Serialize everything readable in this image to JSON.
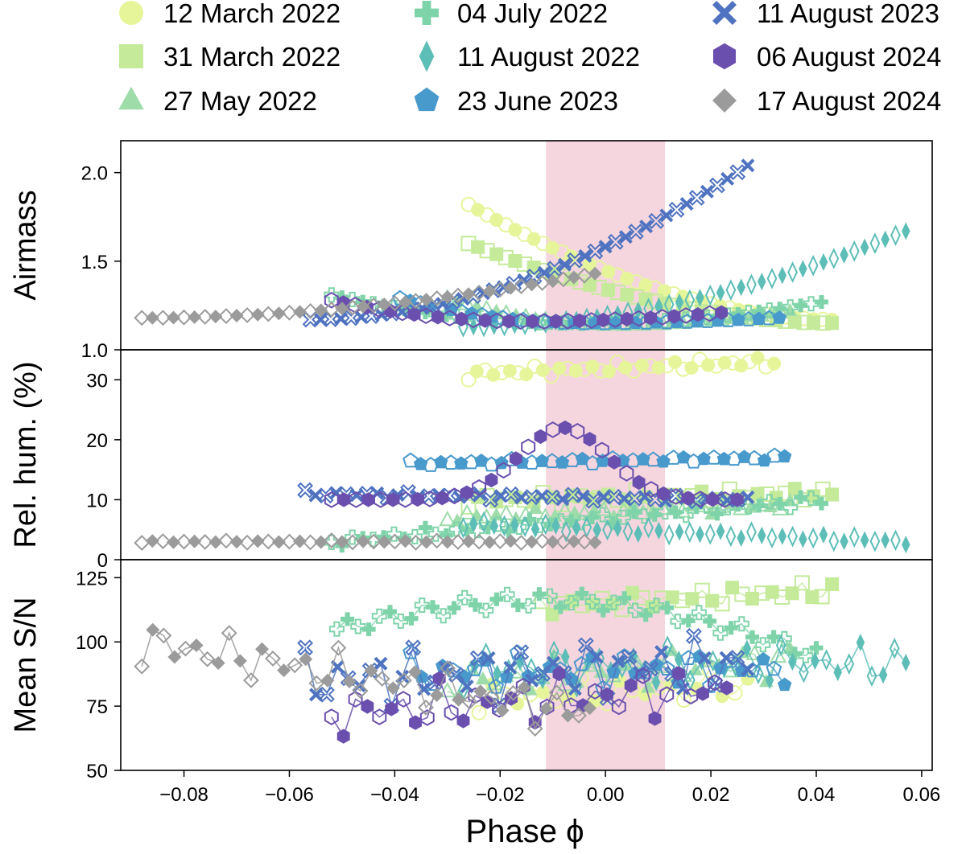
{
  "legend": [
    {
      "label": "12 March 2022",
      "marker": "circle",
      "color": "#e6f59a"
    },
    {
      "label": "31 March 2022",
      "marker": "square",
      "color": "#c4ea9a"
    },
    {
      "label": "27 May 2022",
      "marker": "triangle",
      "color": "#9edcaa"
    },
    {
      "label": "04 July 2022",
      "marker": "plus",
      "color": "#7fd3a9"
    },
    {
      "label": "11 August 2022",
      "marker": "diamond",
      "color": "#5dbdb7"
    },
    {
      "label": "23 June 2023",
      "marker": "pentagon",
      "color": "#4899cc"
    },
    {
      "label": "11 August 2023",
      "marker": "x",
      "color": "#4f73c0"
    },
    {
      "label": "06 August 2024",
      "marker": "hexagon",
      "color": "#6a4fae"
    },
    {
      "label": "17 August 2024",
      "marker": "thindiamond",
      "color": "#9b9b9b"
    }
  ],
  "shaded_band": {
    "x_range": [
      -0.0113,
      0.0113
    ],
    "color": "#f6d6de"
  },
  "chart_data": {
    "type": "scatter",
    "xlabel": "Phase ϕ",
    "xlim": [
      -0.092,
      0.062
    ],
    "xticks": [
      -0.08,
      -0.06,
      -0.04,
      -0.02,
      0.0,
      0.02,
      0.04,
      0.06
    ],
    "xtick_labels": [
      "−0.08",
      "−0.06",
      "−0.04",
      "−0.02",
      "0.00",
      "0.02",
      "0.04",
      "0.06"
    ],
    "panels": [
      {
        "ylabel": "Airmass",
        "ylim": [
          1.0,
          2.18
        ],
        "yticks": [
          1.0,
          1.5,
          2.0
        ],
        "ytick_labels": [
          "1.0",
          "1.5",
          "2.0"
        ],
        "series": [
          {
            "name": "12 March 2022",
            "x_range": [
              -0.026,
              0.043
            ],
            "y_start": 1.82,
            "y_end": 1.17,
            "shape": "decay",
            "n": 40,
            "connect": false
          },
          {
            "name": "31 March 2022",
            "x_range": [
              -0.026,
              0.043
            ],
            "y_start": 1.6,
            "y_end": 1.15,
            "shape": "decay",
            "n": 40,
            "connect": false
          },
          {
            "name": "27 May 2022",
            "x_range": [
              -0.03,
              0.035
            ],
            "y_start": 1.29,
            "y_end": 1.22,
            "y_min": 1.14,
            "shape": "bowl",
            "n": 36,
            "connect": false
          },
          {
            "name": "04 July 2022",
            "x_range": [
              -0.052,
              0.041
            ],
            "y_start": 1.31,
            "y_end": 1.27,
            "y_min": 1.15,
            "shape": "bowl",
            "n": 48,
            "connect": false
          },
          {
            "name": "11 August 2022",
            "x_range": [
              -0.027,
              0.057
            ],
            "y_start": 1.13,
            "y_end": 1.67,
            "shape": "grow",
            "n": 44,
            "connect": false
          },
          {
            "name": "23 June 2023",
            "x_range": [
              -0.039,
              0.033
            ],
            "y_start": 1.29,
            "y_end": 1.18,
            "y_min": 1.15,
            "shape": "bowl",
            "n": 38,
            "connect": false
          },
          {
            "name": "11 August 2023",
            "x_range": [
              -0.056,
              0.027
            ],
            "y_start": 1.17,
            "y_end": 2.04,
            "shape": "grow",
            "n": 44,
            "connect": false
          },
          {
            "name": "06 August 2024",
            "x_range": [
              -0.052,
              0.022
            ],
            "y_start": 1.28,
            "y_end": 1.21,
            "y_min": 1.16,
            "shape": "bowl",
            "n": 34,
            "connect": false
          },
          {
            "name": "17 August 2024",
            "x_range": [
              -0.088,
              -0.002
            ],
            "y_start": 1.18,
            "y_end": 1.43,
            "shape": "grow",
            "n": 44,
            "connect": false
          }
        ]
      },
      {
        "ylabel": "Rel. hum. (%)",
        "ylim": [
          0,
          35
        ],
        "yticks": [
          0,
          10,
          20,
          30
        ],
        "ytick_labels": [
          "0",
          "10",
          "20",
          "30"
        ],
        "series": [
          {
            "name": "12 March 2022",
            "x_range": [
              -0.026,
              0.032
            ],
            "y_start": 31,
            "y_end": 33,
            "shape": "wave",
            "amp": 1.0,
            "n": 38,
            "connect": false
          },
          {
            "name": "31 March 2022",
            "x_range": [
              -0.026,
              0.043
            ],
            "y_start": 10,
            "y_end": 11,
            "shape": "wave",
            "amp": 1.2,
            "n": 40,
            "connect": false
          },
          {
            "name": "27 May 2022",
            "x_range": [
              -0.03,
              0.035
            ],
            "y_start": 7,
            "y_end": 9,
            "shape": "wave",
            "amp": 1.0,
            "n": 36,
            "connect": false
          },
          {
            "name": "04 July 2022",
            "x_range": [
              -0.052,
              0.041
            ],
            "y_start": 3,
            "y_end": 10,
            "shape": "wave",
            "amp": 1.0,
            "n": 48,
            "connect": false
          },
          {
            "name": "11 August 2022",
            "x_range": [
              -0.027,
              0.057
            ],
            "y_start": 6,
            "y_end": 3,
            "shape": "wave",
            "amp": 0.7,
            "n": 44,
            "connect": false
          },
          {
            "name": "23 June 2023",
            "x_range": [
              -0.037,
              0.034
            ],
            "y_start": 16,
            "y_end": 17,
            "shape": "wave",
            "amp": 0.5,
            "n": 38,
            "connect": false
          },
          {
            "name": "11 August 2023",
            "x_range": [
              -0.057,
              0.027
            ],
            "y_start": 11,
            "y_end": 10,
            "shape": "wave",
            "amp": 0.6,
            "n": 44,
            "connect": false
          },
          {
            "name": "06 August 2024",
            "x_range": [
              -0.052,
              0.025
            ],
            "y_start": 10,
            "y_end": 10,
            "shape": "peak",
            "peak_x": -0.008,
            "peak_y": 22,
            "n": 34,
            "connect": false
          },
          {
            "name": "17 August 2024",
            "x_range": [
              -0.088,
              -0.002
            ],
            "y_start": 3,
            "y_end": 3,
            "shape": "wave",
            "amp": 0.2,
            "n": 44,
            "connect": false
          }
        ]
      },
      {
        "ylabel": "Mean S/N",
        "ylim": [
          50,
          132
        ],
        "yticks": [
          50,
          75,
          100,
          125
        ],
        "ytick_labels": [
          "50",
          "75",
          "100",
          "125"
        ],
        "series": [
          {
            "name": "12 March 2022",
            "x_range": [
              -0.024,
              0.027
            ],
            "y_start": 78,
            "y_end": 83,
            "shape": "wave",
            "amp": 7,
            "n": 22,
            "connect": true
          },
          {
            "name": "31 March 2022",
            "x_range": [
              -0.012,
              0.043
            ],
            "y_start": 114,
            "y_end": 120,
            "shape": "wave",
            "amp": 4,
            "n": 30,
            "connect": true
          },
          {
            "name": "27 May 2022",
            "x_range": [
              -0.03,
              0.035
            ],
            "y_start": 84,
            "y_end": 93,
            "shape": "wave",
            "amp": 8,
            "n": 30,
            "connect": true
          },
          {
            "name": "04 July 2022",
            "x_range": [
              -0.051,
              0.04
            ],
            "y_start": 105,
            "y_end": 95,
            "y_mid": 116,
            "shape": "hump",
            "amp": 3,
            "n": 46,
            "connect": true
          },
          {
            "name": "11 August 2022",
            "x_range": [
              -0.027,
              0.057
            ],
            "y_start": 90,
            "y_end": 92,
            "shape": "wave",
            "amp": 9,
            "n": 40,
            "connect": true
          },
          {
            "name": "23 June 2023",
            "x_range": [
              -0.037,
              0.034
            ],
            "y_start": 88,
            "y_end": 90,
            "shape": "wave",
            "amp": 8,
            "n": 36,
            "connect": true
          },
          {
            "name": "11 August 2023",
            "x_range": [
              -0.057,
              0.027
            ],
            "y_start": 85,
            "y_end": 92,
            "shape": "wave",
            "amp": 13,
            "n": 42,
            "connect": true
          },
          {
            "name": "06 August 2024",
            "x_range": [
              -0.052,
              0.023
            ],
            "y_start": 72,
            "y_end": 82,
            "shape": "wave",
            "amp": 11,
            "n": 34,
            "connect": true
          },
          {
            "name": "17 August 2024",
            "x_range": [
              -0.088,
              -0.003
            ],
            "y_start": 100,
            "y_end": 72,
            "shape": "wave",
            "amp": 10,
            "n": 42,
            "connect": true
          }
        ]
      }
    ]
  }
}
